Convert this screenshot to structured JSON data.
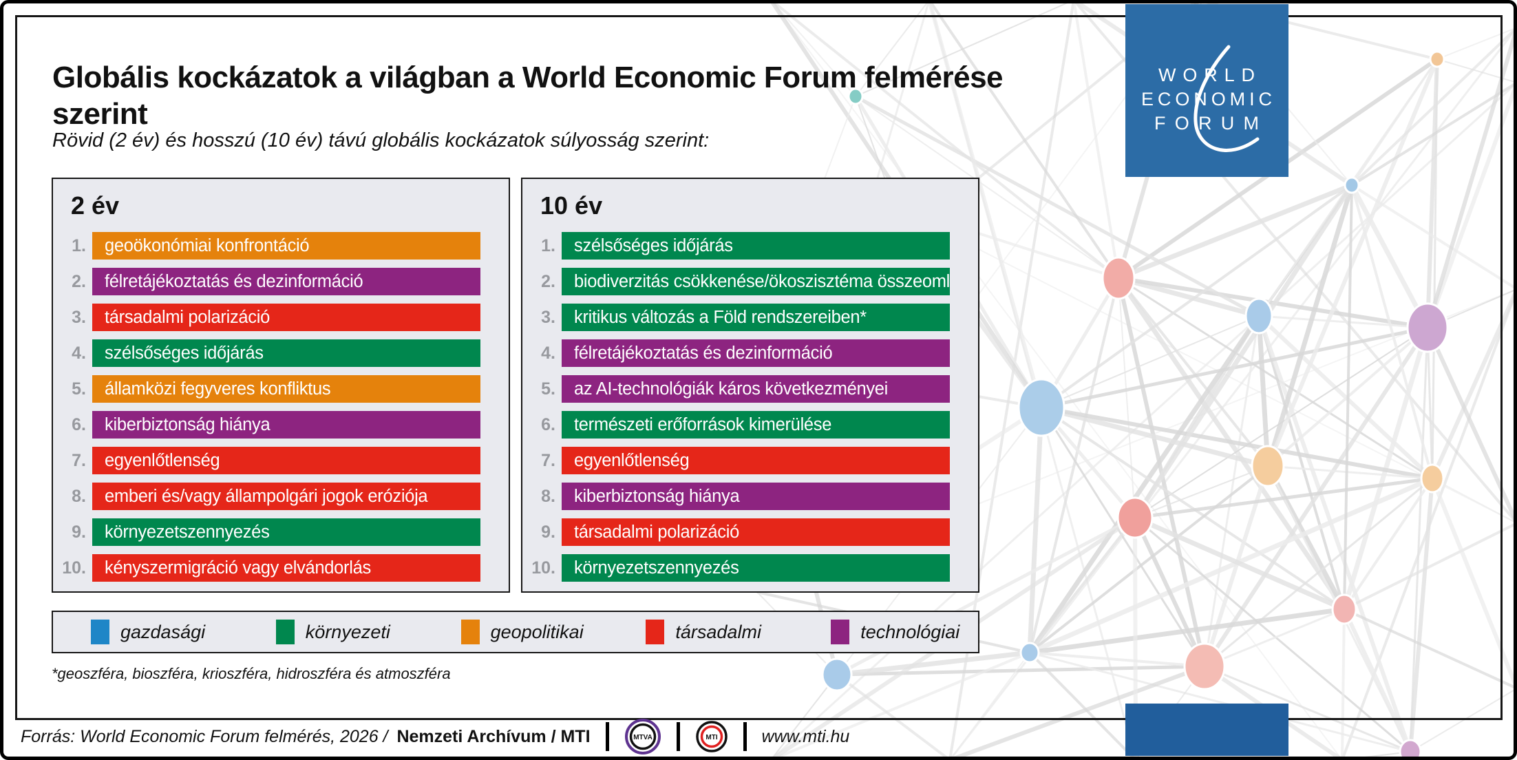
{
  "colors": {
    "gazdasági": "#1E86C7",
    "környezeti": "#00874E",
    "geopolitikai": "#E5820C",
    "társadalmi": "#E52619",
    "technológiai": "#8D2480",
    "wef_blue": "#2C6CA6",
    "wef_blue_dark": "#215E9C",
    "mtva_purple": "#5E3390",
    "mti_red": "#E02020"
  },
  "header": {
    "title": "Globális kockázatok a világban a World Economic Forum felmérése szerint",
    "subtitle": "Rövid (2 év) és hosszú (10 év) távú globális kockázatok súlyosság szerint:"
  },
  "wef_logo": {
    "line1": "WORLD",
    "line2": "ECONOMIC",
    "line3": "FORUM"
  },
  "chart_data": {
    "type": "table",
    "title": "Globális kockázatok a világban a World Economic Forum felmérése szerint",
    "subtitle": "Rövid (2 év) és hosszú (10 év) távú globális kockázatok súlyosság szerint:",
    "legend": [
      "gazdasági",
      "környezeti",
      "geopolitikai",
      "társadalmi",
      "technológiai"
    ],
    "tables": [
      {
        "name": "2 év",
        "rows": [
          {
            "rank": "1.",
            "risk": "geoökonómiai konfrontáció",
            "category": "geopolitikai"
          },
          {
            "rank": "2.",
            "risk": "félretájékoztatás és dezinformáció",
            "category": "technológiai"
          },
          {
            "rank": "3.",
            "risk": "társadalmi polarizáció",
            "category": "társadalmi"
          },
          {
            "rank": "4.",
            "risk": "szélsőséges időjárás",
            "category": "környezeti"
          },
          {
            "rank": "5.",
            "risk": "államközi fegyveres konfliktus",
            "category": "geopolitikai"
          },
          {
            "rank": "6.",
            "risk": "kiberbiztonság hiánya",
            "category": "technológiai"
          },
          {
            "rank": "7.",
            "risk": "egyenlőtlenség",
            "category": "társadalmi"
          },
          {
            "rank": "8.",
            "risk": "emberi és/vagy állampolgári jogok eróziója",
            "category": "társadalmi"
          },
          {
            "rank": "9.",
            "risk": "környezetszennyezés",
            "category": "környezeti"
          },
          {
            "rank": "10.",
            "risk": "kényszermigráció vagy elvándorlás",
            "category": "társadalmi"
          }
        ]
      },
      {
        "name": "10 év",
        "rows": [
          {
            "rank": "1.",
            "risk": "szélsőséges időjárás",
            "category": "környezeti"
          },
          {
            "rank": "2.",
            "risk": "biodiverzitás csökkenése/ökoszisztéma összeomlása",
            "category": "környezeti"
          },
          {
            "rank": "3.",
            "risk": "kritikus változás a Föld rendszereiben*",
            "category": "környezeti"
          },
          {
            "rank": "4.",
            "risk": "félretájékoztatás és dezinformáció",
            "category": "technológiai"
          },
          {
            "rank": "5.",
            "risk": "az AI-technológiák káros következményei",
            "category": "technológiai"
          },
          {
            "rank": "6.",
            "risk": "természeti erőforrások kimerülése",
            "category": "környezeti"
          },
          {
            "rank": "7.",
            "risk": "egyenlőtlenség",
            "category": "társadalmi"
          },
          {
            "rank": "8.",
            "risk": "kiberbiztonság hiánya",
            "category": "technológiai"
          },
          {
            "rank": "9.",
            "risk": "társadalmi polarizáció",
            "category": "társadalmi"
          },
          {
            "rank": "10.",
            "risk": "környezetszennyezés",
            "category": "környezeti"
          }
        ]
      }
    ],
    "footnote": "*geoszféra, bioszféra, krioszféra, hidroszféra és atmoszféra"
  },
  "footer": {
    "source_prefix": "Forrás: World Economic Forum felmérés, 2026 /",
    "source_bold": "Nemzeti Archívum / MTI",
    "mtva_label": "MTVA",
    "mti_label": "MTI",
    "url": "www.mti.hu"
  }
}
